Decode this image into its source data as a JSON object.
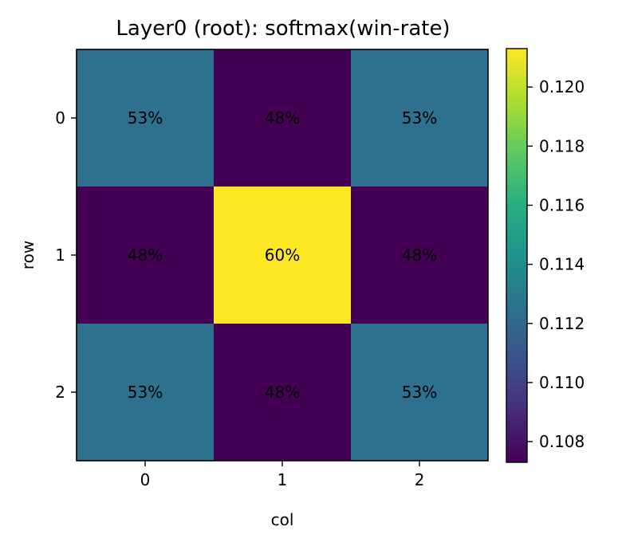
{
  "chart_data": {
    "type": "heatmap",
    "title": "Layer0 (root): softmax(win-rate)",
    "xlabel": "col",
    "ylabel": "row",
    "x_categories": [
      "0",
      "1",
      "2"
    ],
    "y_categories": [
      "0",
      "1",
      "2"
    ],
    "values": [
      [
        0.1125,
        0.1073,
        0.1125
      ],
      [
        0.1073,
        0.1213,
        0.1073
      ],
      [
        0.1125,
        0.1073,
        0.1125
      ]
    ],
    "cell_labels": [
      [
        "53%",
        "48%",
        "53%"
      ],
      [
        "48%",
        "60%",
        "48%"
      ],
      [
        "53%",
        "48%",
        "53%"
      ]
    ],
    "colormap": "viridis",
    "colorbar": {
      "range": [
        0.1073,
        0.1213
      ],
      "ticks": [
        0.108,
        0.11,
        0.112,
        0.114,
        0.116,
        0.118,
        0.12
      ],
      "tick_labels": [
        "0.108",
        "0.110",
        "0.112",
        "0.114",
        "0.116",
        "0.118",
        "0.120"
      ]
    },
    "colors": {
      "low": "#440154",
      "mid": "#26698d",
      "high": "#fde725"
    }
  }
}
